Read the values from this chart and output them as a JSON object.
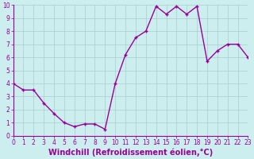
{
  "x": [
    0,
    1,
    2,
    3,
    4,
    5,
    6,
    7,
    8,
    9,
    10,
    11,
    12,
    13,
    14,
    15,
    16,
    17,
    18,
    19,
    20,
    21,
    22,
    23
  ],
  "y": [
    4,
    3.5,
    3.5,
    2.5,
    1.7,
    1.0,
    0.7,
    0.9,
    0.9,
    0.5,
    4.0,
    6.2,
    7.5,
    8.0,
    9.9,
    9.3,
    9.9,
    9.3,
    9.9,
    5.7,
    6.5,
    7.0,
    7.0,
    6.0
  ],
  "line_color": "#990099",
  "marker": "+",
  "marker_size": 3,
  "background_color": "#cceeee",
  "grid_color": "#aacccc",
  "xlabel": "Windchill (Refroidissement éolien,°C)",
  "xlabel_color": "#990099",
  "ylim": [
    0,
    10
  ],
  "xlim": [
    0,
    23
  ],
  "yticks": [
    0,
    1,
    2,
    3,
    4,
    5,
    6,
    7,
    8,
    9,
    10
  ],
  "xticks": [
    0,
    1,
    2,
    3,
    4,
    5,
    6,
    7,
    8,
    9,
    10,
    11,
    12,
    13,
    14,
    15,
    16,
    17,
    18,
    19,
    20,
    21,
    22,
    23
  ],
  "tick_label_color": "#990099",
  "tick_label_fontsize": 5.5,
  "xlabel_fontsize": 7,
  "line_width": 1.0,
  "markeredgewidth": 1.0
}
